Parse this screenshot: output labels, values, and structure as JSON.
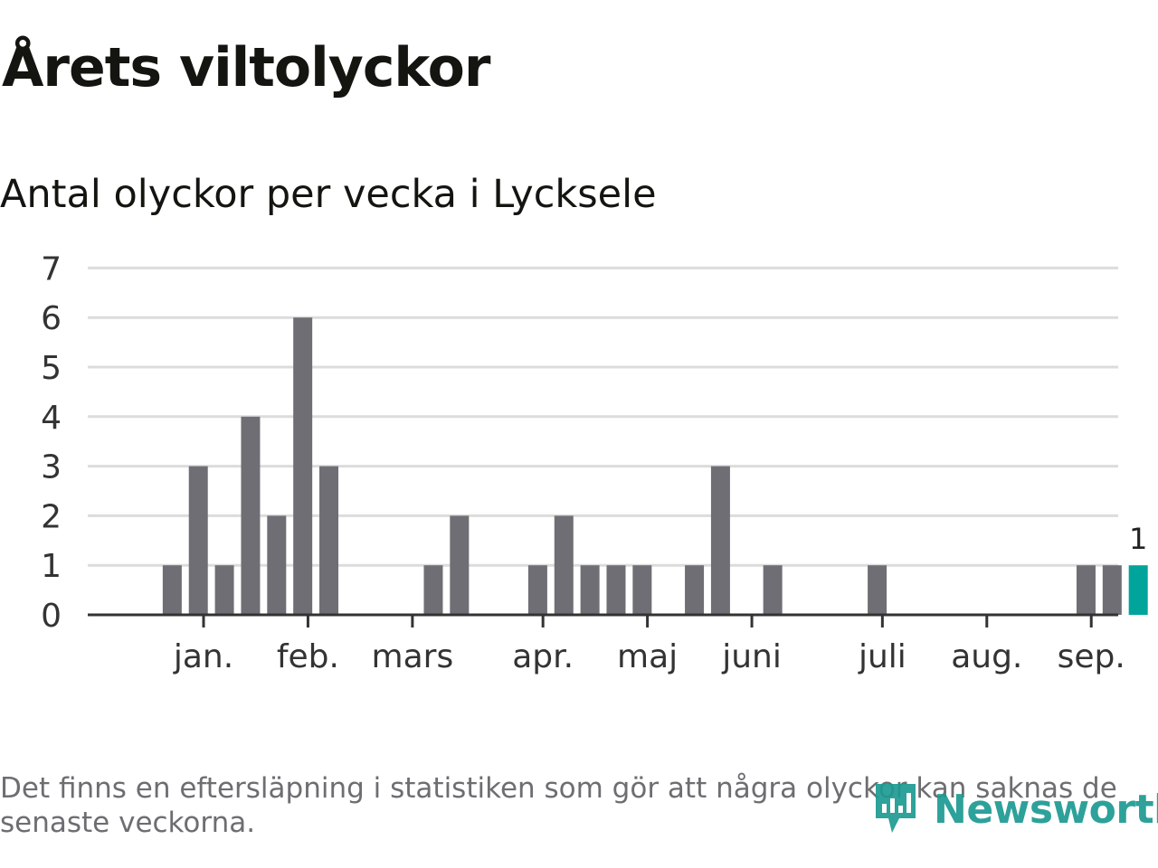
{
  "header": {
    "title": "Årets viltolyckor",
    "subtitle": "Antal olyckor per vecka i Lycksele"
  },
  "chart_data": {
    "type": "bar",
    "title": "Årets viltolyckor",
    "subtitle": "Antal olyckor per vecka i Lycksele",
    "xlabel": "",
    "ylabel": "",
    "ylim": [
      0,
      7
    ],
    "yticks": [
      "0",
      "1",
      "2",
      "3",
      "4",
      "5",
      "6",
      "7"
    ],
    "grid": true,
    "x_unit": "week",
    "weeks": [
      1,
      2,
      3,
      4,
      5,
      6,
      7,
      8,
      9,
      10,
      11,
      12,
      13,
      14,
      15,
      16,
      17,
      18,
      19,
      20,
      21,
      22,
      23,
      24,
      25,
      26,
      27,
      28,
      29,
      30,
      31,
      32,
      33,
      34,
      35,
      36,
      37,
      38,
      39
    ],
    "values": [
      0,
      1,
      3,
      1,
      4,
      2,
      6,
      3,
      0,
      0,
      0,
      1,
      2,
      0,
      0,
      1,
      2,
      1,
      1,
      1,
      0,
      1,
      3,
      0,
      1,
      0,
      0,
      0,
      1,
      0,
      0,
      0,
      0,
      0,
      0,
      0,
      1,
      1,
      1
    ],
    "month_labels": [
      {
        "label": "jan.",
        "week": 3.2
      },
      {
        "label": "feb.",
        "week": 7.2
      },
      {
        "label": "mars",
        "week": 11.2
      },
      {
        "label": "apr.",
        "week": 16.2
      },
      {
        "label": "maj",
        "week": 20.2
      },
      {
        "label": "juni",
        "week": 24.2
      },
      {
        "label": "juli",
        "week": 29.2
      },
      {
        "label": "aug.",
        "week": 33.2
      },
      {
        "label": "sep.",
        "week": 37.2
      }
    ],
    "highlight": {
      "week": 39,
      "value_label": "1"
    },
    "colors": {
      "bar": "#6f6e74",
      "highlight": "#00a49a",
      "grid": "#dcdcdc",
      "axis": "#333333"
    }
  },
  "footnote": "Det finns en eftersläpning i statistiken som gör att några olyckor kan saknas de senaste veckorna.",
  "logo": {
    "text": "Newsworthy",
    "icon": "newsworthy-logo-icon",
    "color": "#1c9a92"
  }
}
